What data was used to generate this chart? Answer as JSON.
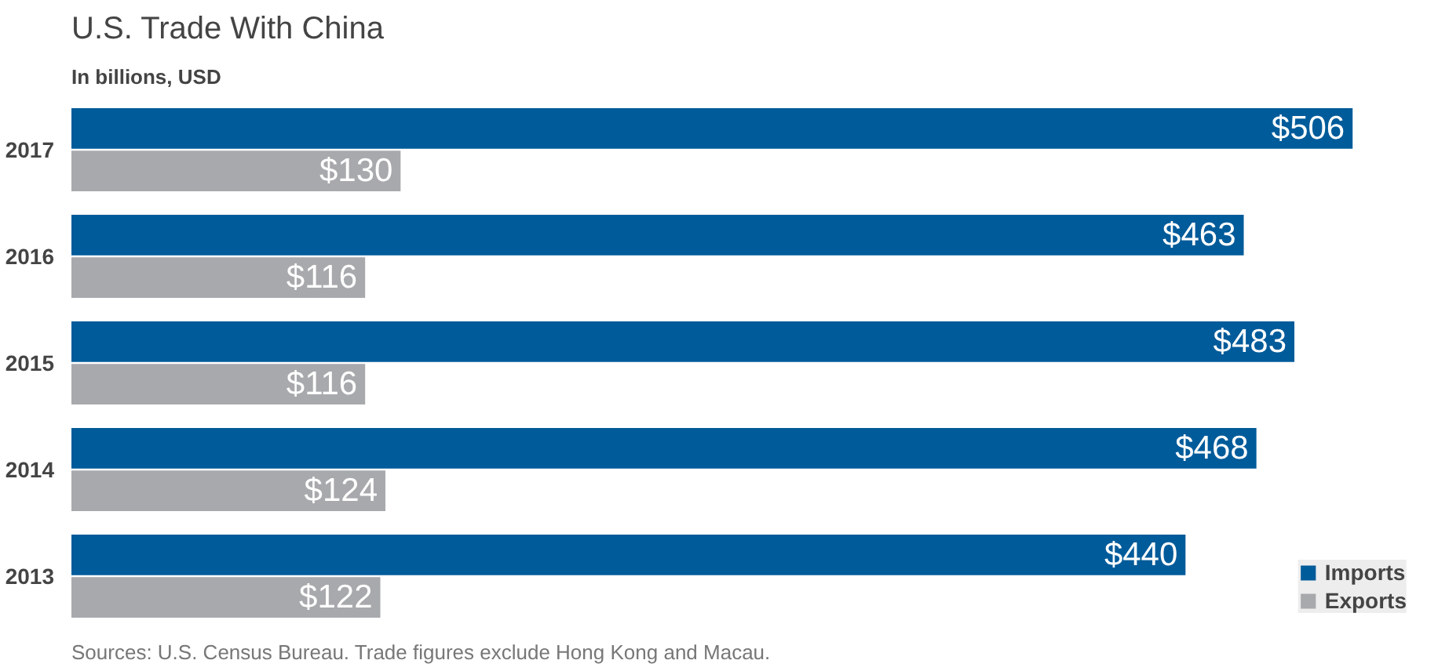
{
  "chart_data": {
    "type": "bar",
    "orientation": "horizontal",
    "title": "U.S. Trade With China",
    "subtitle": "In billions, USD",
    "categories": [
      "2017",
      "2016",
      "2015",
      "2014",
      "2013"
    ],
    "series": [
      {
        "name": "Imports",
        "color": "#005b9a",
        "values": [
          506,
          463,
          483,
          468,
          440
        ],
        "value_labels": [
          "$506",
          "$463",
          "$483",
          "$468",
          "$440"
        ]
      },
      {
        "name": "Exports",
        "color": "#a7a9ac",
        "values": [
          130,
          116,
          116,
          124,
          122
        ],
        "value_labels": [
          "$130",
          "$116",
          "$116",
          "$124",
          "$122"
        ]
      }
    ],
    "legend": "bottom right",
    "grid": false,
    "annotations": [
      "Sources: U.S. Census Bureau. Trade figures exclude Hong Kong and Macau."
    ]
  }
}
